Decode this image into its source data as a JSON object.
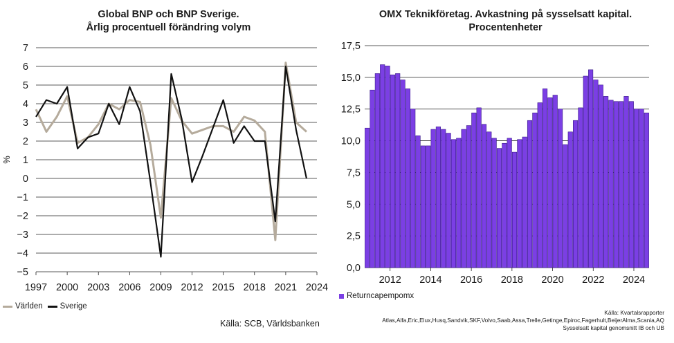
{
  "left_chart": {
    "title_line1": "Global BNP och BNP Sverige.",
    "title_line2": "Årlig procentuell förändring volym",
    "ylabel": "%",
    "legend": [
      "Världen",
      "Sverige"
    ],
    "source": "Källa: SCB, Världsbanken",
    "colors": {
      "world": "#b5ab9c",
      "sweden": "#111111"
    }
  },
  "right_chart": {
    "title_line1": "OMX Teknikföretag. Avkastning på sysselsatt kapital.",
    "title_line2": "Procentenheter",
    "legend": "Returncapempomx",
    "notes": [
      "Källa: Kvartalsrapporter",
      "Atlas,Alfa,Eric,Elux,Husq,Sandvik,SKF,Volvo,Saab,Assa,Trelle,Getinge,Epiroc,Fagerhult,BeijerAlma,Scania,AQ",
      "Sysselsatt kapital genomsnitt IB och UB"
    ],
    "colors": {
      "bar": "#7b3fe4",
      "bar_edge": "#3a1a8a"
    }
  },
  "chart_data": [
    {
      "type": "line",
      "title": "Global BNP och BNP Sverige. Årlig procentuell förändring volym",
      "xlabel": "",
      "ylabel": "%",
      "xlim": [
        1997,
        2024
      ],
      "ylim": [
        -5,
        7
      ],
      "xticks": [
        1997,
        2000,
        2003,
        2006,
        2009,
        2012,
        2015,
        2018,
        2021,
        2024
      ],
      "yticks": [
        7,
        6,
        5,
        4,
        3,
        2,
        1,
        0,
        -1,
        -2,
        -3,
        -4,
        -5
      ],
      "grid": true,
      "legend_position": "bottom-left",
      "x": [
        1997,
        1998,
        1999,
        2000,
        2001,
        2002,
        2003,
        2004,
        2005,
        2006,
        2007,
        2008,
        2009,
        2010,
        2011,
        2012,
        2013,
        2014,
        2015,
        2016,
        2017,
        2018,
        2019,
        2020,
        2021,
        2022,
        2023
      ],
      "series": [
        {
          "name": "Världen",
          "values": [
            3.7,
            2.5,
            3.3,
            4.4,
            1.9,
            2.2,
            2.9,
            4.0,
            3.7,
            4.2,
            4.1,
            1.8,
            -2.1,
            4.3,
            3.1,
            2.4,
            2.6,
            2.8,
            2.8,
            2.5,
            3.3,
            3.1,
            2.5,
            -3.3,
            6.2,
            3.0,
            2.5
          ]
        },
        {
          "name": "Sverige",
          "values": [
            3.3,
            4.2,
            4.0,
            4.9,
            1.6,
            2.2,
            2.4,
            4.0,
            2.9,
            4.9,
            3.6,
            -0.2,
            -4.2,
            5.6,
            3.2,
            -0.2,
            1.2,
            2.7,
            4.2,
            1.9,
            2.8,
            2.0,
            2.0,
            -2.3,
            6.0,
            2.6,
            0.0
          ]
        }
      ]
    },
    {
      "type": "bar",
      "title": "OMX Teknikföretag. Avkastning på sysselsatt kapital. Procentenheter",
      "xlabel": "",
      "ylabel": "",
      "ylim": [
        0,
        17.5
      ],
      "yticks": [
        "0,0",
        "2,5",
        "5,0",
        "7,5",
        "10,0",
        "12,5",
        "15,0",
        "17,5"
      ],
      "xticks": [
        "2012",
        "2014",
        "2016",
        "2018",
        "2020",
        "2022",
        "2024"
      ],
      "grid": true,
      "legend_position": "bottom-left",
      "x_start_year": 2010.75,
      "x_step_year": 0.25,
      "series": [
        {
          "name": "Returncapempomx",
          "values": [
            11.0,
            14.0,
            15.3,
            16.0,
            15.9,
            15.2,
            15.3,
            14.8,
            14.1,
            12.5,
            10.4,
            9.6,
            9.6,
            10.9,
            11.1,
            10.9,
            10.6,
            10.1,
            10.2,
            10.9,
            11.2,
            12.2,
            12.6,
            11.3,
            10.7,
            10.2,
            9.4,
            9.8,
            10.2,
            9.1,
            10.1,
            10.3,
            11.6,
            12.2,
            13.0,
            14.1,
            13.4,
            13.6,
            12.5,
            9.7,
            10.7,
            11.6,
            12.6,
            15.1,
            15.6,
            14.8,
            14.4,
            13.5,
            13.2,
            13.1,
            13.1,
            13.5,
            13.1,
            12.5,
            12.5,
            12.2
          ]
        }
      ]
    }
  ]
}
